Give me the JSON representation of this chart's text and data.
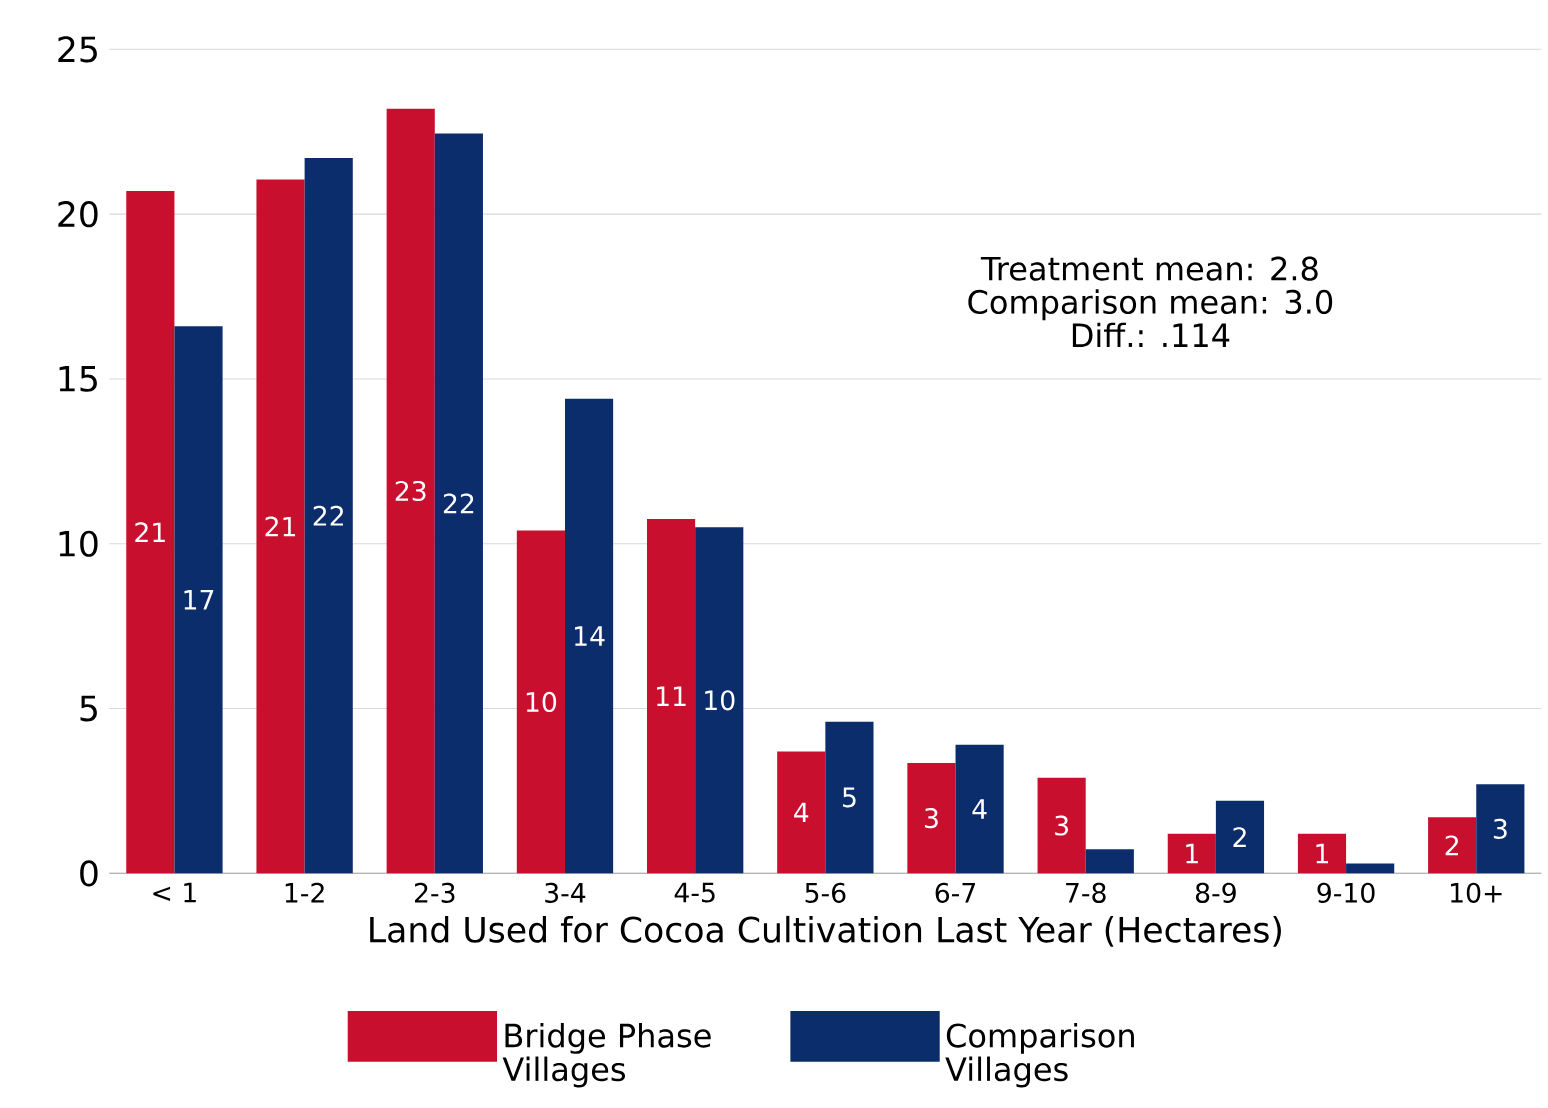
{
  "chart_data": {
    "type": "bar",
    "xlabel": "Land Used for Cocoa Cultivation Last Year (Hectares)",
    "categories": [
      "< 1",
      "1-2",
      "2-3",
      "3-4",
      "4-5",
      "5-6",
      "6-7",
      "7-8",
      "8-9",
      "9-10",
      "10+"
    ],
    "series": [
      {
        "name": "Bridge Phase Villages",
        "color": "#c8102e",
        "values": [
          20.7,
          21.05,
          23.2,
          10.4,
          10.75,
          3.7,
          3.35,
          2.9,
          1.2,
          1.2,
          1.7
        ],
        "value_labels": [
          "21",
          "21",
          "23",
          "10",
          "11",
          "4",
          "3",
          "3",
          "1",
          "1",
          "2"
        ]
      },
      {
        "name": "Comparison Villages",
        "color": "#0c2d6b",
        "values": [
          16.6,
          21.7,
          22.45,
          14.4,
          10.5,
          4.6,
          3.9,
          0.73,
          2.2,
          0.3,
          2.7
        ],
        "value_labels": [
          "17",
          "22",
          "22",
          "14",
          "10",
          "5",
          "4",
          null,
          "2",
          null,
          "3"
        ]
      }
    ],
    "annotations": [
      "Treatment mean: 2.8",
      "Comparison mean: 3.0",
      "Diff.: .114"
    ],
    "ylim": [
      0,
      25
    ],
    "yticks": [
      0,
      5,
      10,
      15,
      20,
      25
    ],
    "grid": "y",
    "legend": "bottom"
  }
}
